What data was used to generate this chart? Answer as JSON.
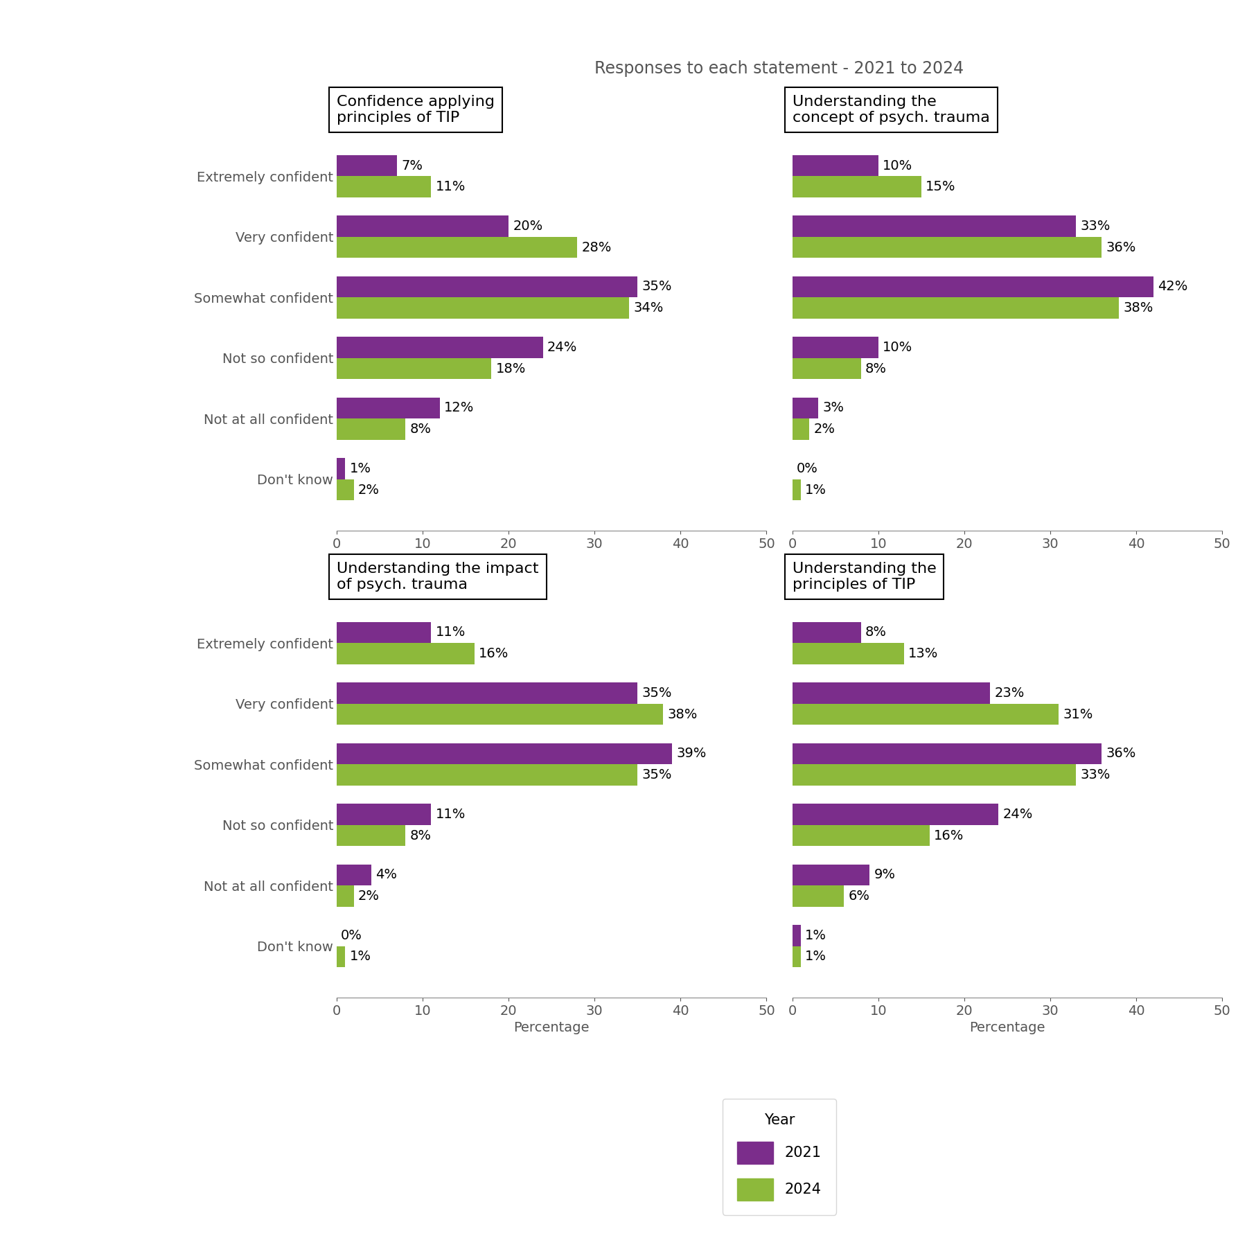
{
  "title": "Responses to each statement - 2021 to 2024",
  "xlabel": "Percentage",
  "categories": [
    "Extremely confident",
    "Very confident",
    "Somewhat confident",
    "Not so confident",
    "Not at all confident",
    "Don't know"
  ],
  "xlim": [
    0,
    50
  ],
  "xticks": [
    0,
    10,
    20,
    30,
    40,
    50
  ],
  "color_2021": "#7B2D8B",
  "color_2024": "#8DB93B",
  "charts": [
    {
      "title": "Confidence applying\nprinciples of TIP",
      "values_2021": [
        7,
        20,
        35,
        24,
        12,
        1
      ],
      "values_2024": [
        11,
        28,
        34,
        18,
        8,
        2
      ]
    },
    {
      "title": "Understanding the\nconcept of psych. trauma",
      "values_2021": [
        10,
        33,
        42,
        10,
        3,
        0
      ],
      "values_2024": [
        15,
        36,
        38,
        8,
        2,
        1
      ]
    },
    {
      "title": "Understanding the impact\nof psych. trauma",
      "values_2021": [
        11,
        35,
        39,
        11,
        4,
        0
      ],
      "values_2024": [
        16,
        38,
        35,
        8,
        2,
        1
      ]
    },
    {
      "title": "Understanding the\nprinciples of TIP",
      "values_2021": [
        8,
        23,
        36,
        24,
        9,
        1
      ],
      "values_2024": [
        13,
        31,
        33,
        16,
        6,
        1
      ]
    }
  ],
  "legend_title": "Year",
  "legend_labels": [
    "2021",
    "2024"
  ],
  "bar_height": 0.35,
  "label_fontsize": 14,
  "tick_fontsize": 14,
  "title_fontsize": 17,
  "subplot_title_fontsize": 16,
  "text_color": "#555555",
  "background_color": "#ffffff"
}
